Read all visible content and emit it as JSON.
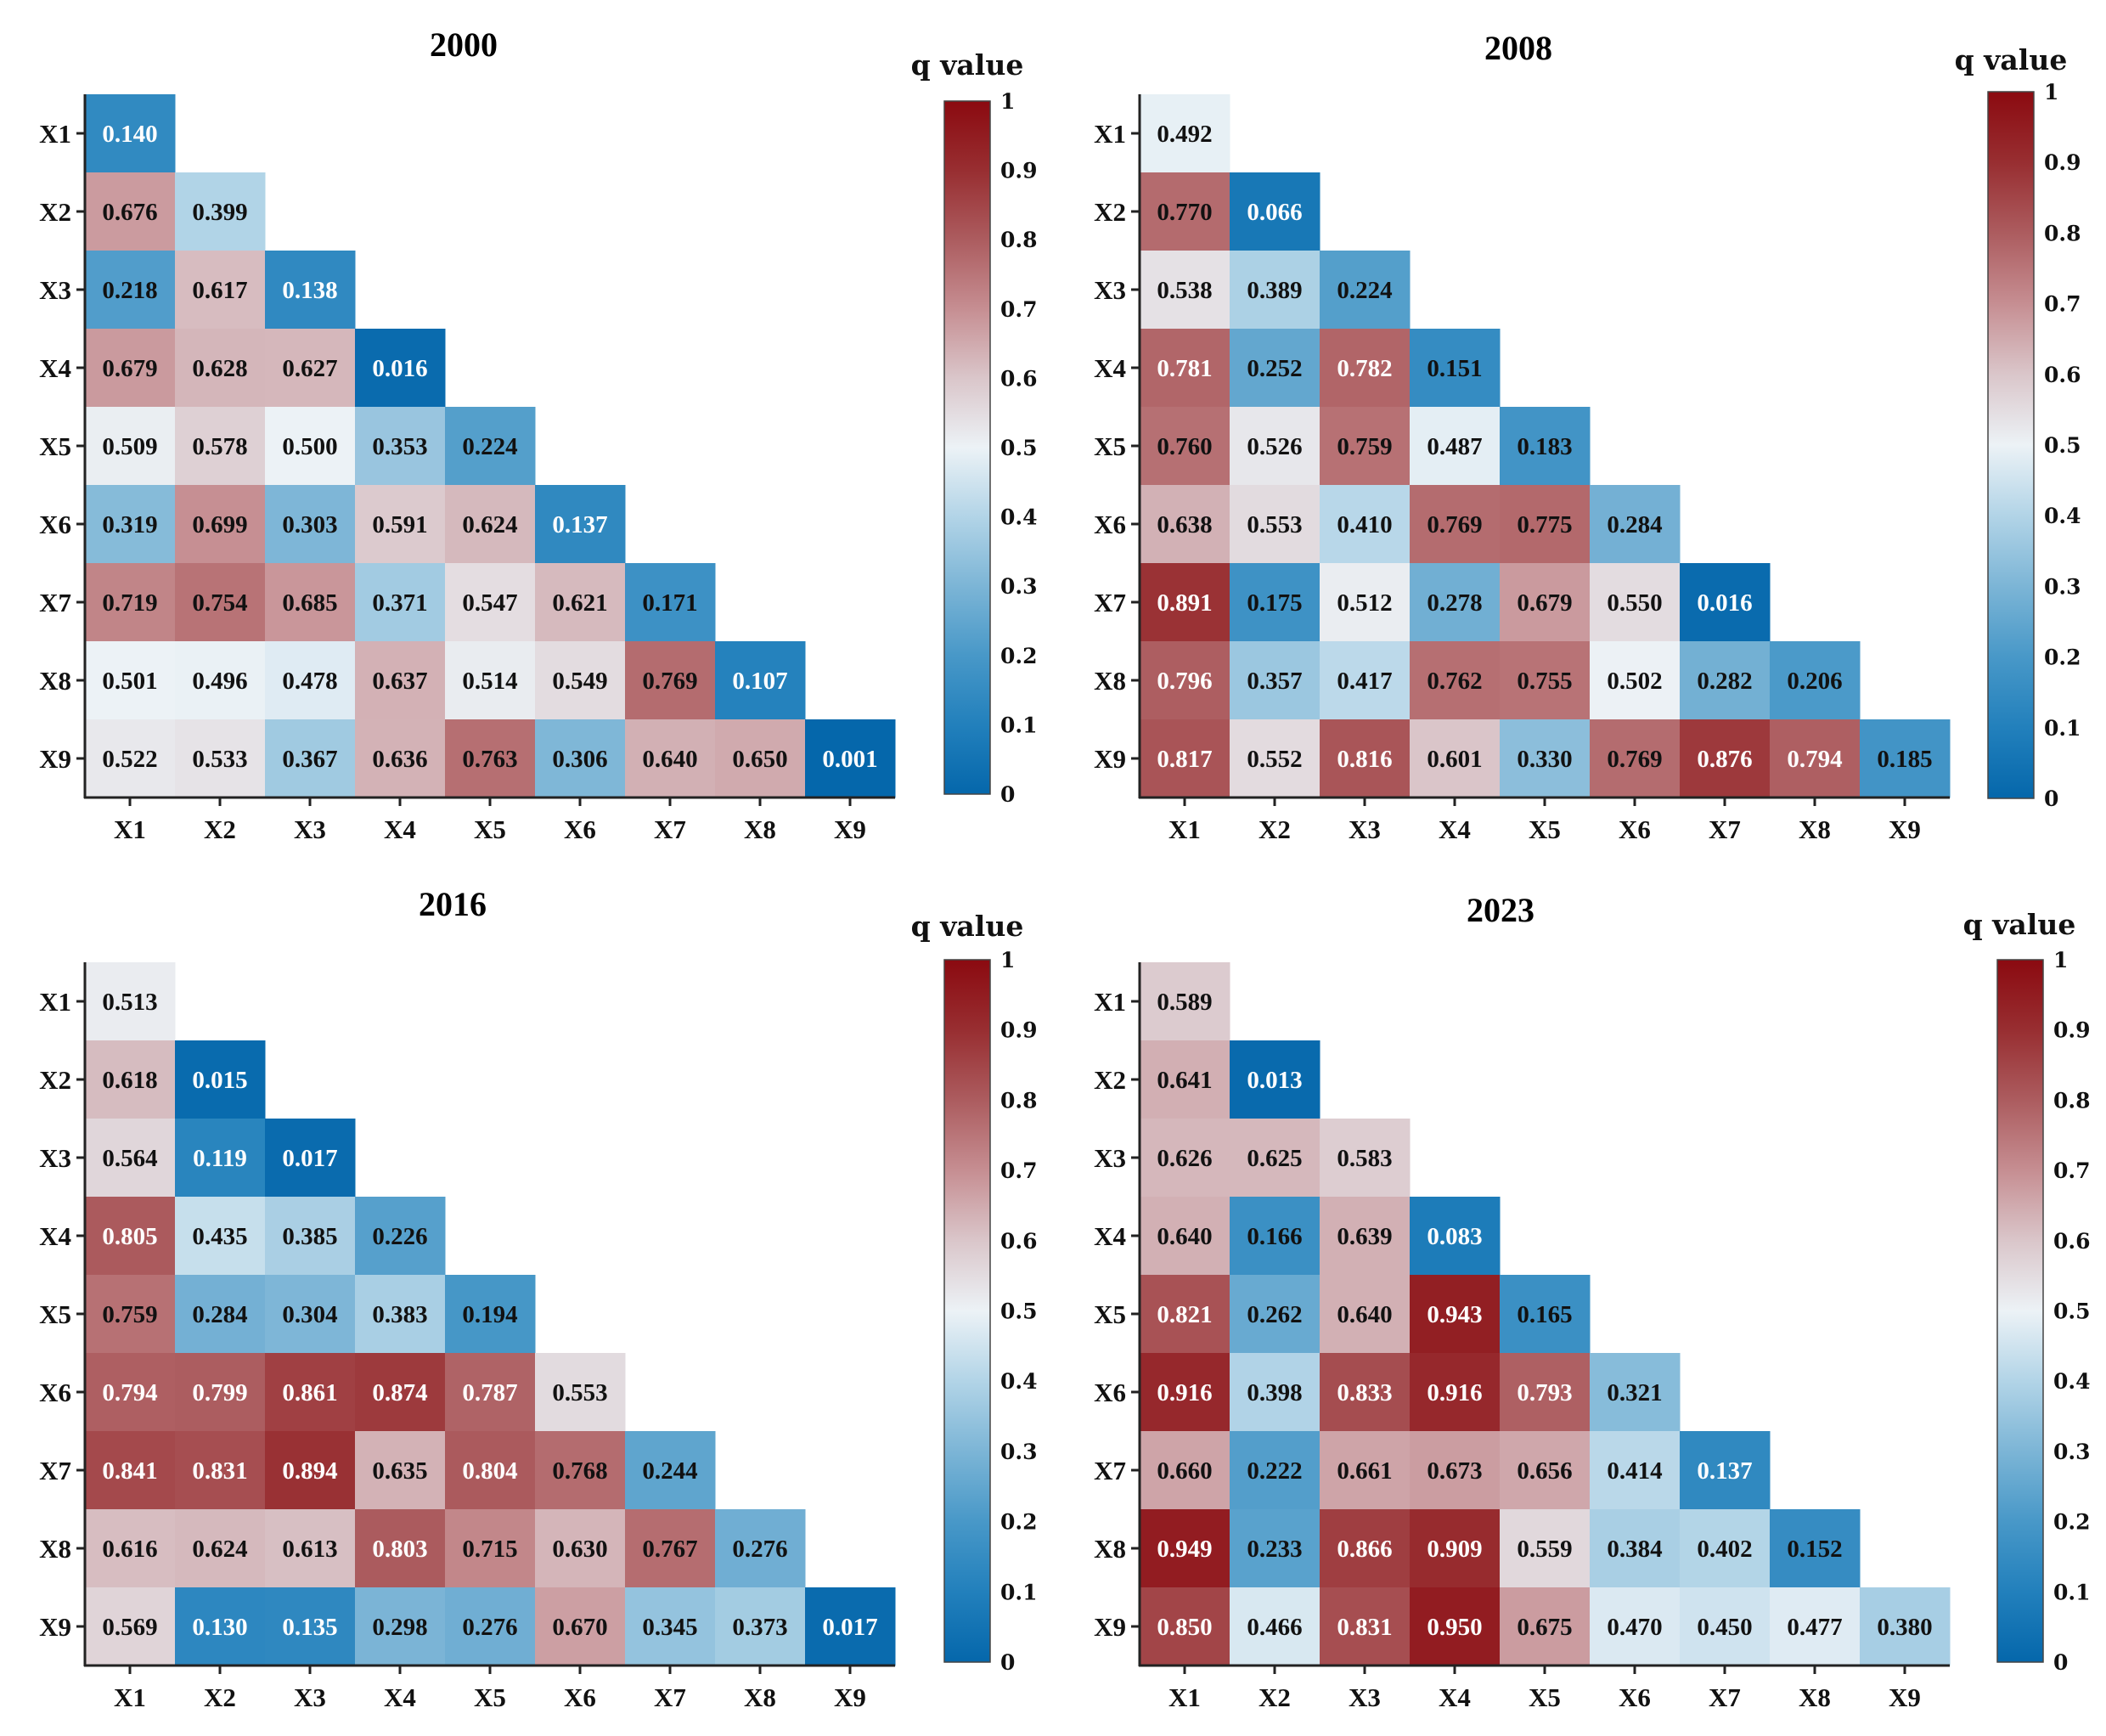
{
  "chart_data": [
    {
      "type": "heatmap",
      "title": "2000",
      "x_labels": [
        "X1",
        "X2",
        "X3",
        "X4",
        "X5",
        "X6",
        "X7",
        "X8",
        "X9"
      ],
      "y_labels": [
        "X1",
        "X2",
        "X3",
        "X4",
        "X5",
        "X6",
        "X7",
        "X8",
        "X9"
      ],
      "colorbar_label": "q value",
      "colorbar_ticks": [
        "0",
        "0.1",
        "0.2",
        "0.3",
        "0.4",
        "0.5",
        "0.6",
        "0.7",
        "0.8",
        "0.9",
        "1"
      ],
      "vmin": 0,
      "vmax": 1,
      "values": [
        [
          "0.140"
        ],
        [
          "0.676",
          "0.399"
        ],
        [
          "0.218",
          "0.617",
          "0.138"
        ],
        [
          "0.679",
          "0.628",
          "0.627",
          "0.016"
        ],
        [
          "0.509",
          "0.578",
          "0.500",
          "0.353",
          "0.224"
        ],
        [
          "0.319",
          "0.699",
          "0.303",
          "0.591",
          "0.624",
          "0.137"
        ],
        [
          "0.719",
          "0.754",
          "0.685",
          "0.371",
          "0.547",
          "0.621",
          "0.171"
        ],
        [
          "0.501",
          "0.496",
          "0.478",
          "0.637",
          "0.514",
          "0.549",
          "0.769",
          "0.107"
        ],
        [
          "0.522",
          "0.533",
          "0.367",
          "0.636",
          "0.763",
          "0.306",
          "0.640",
          "0.650",
          "0.001"
        ]
      ]
    },
    {
      "type": "heatmap",
      "title": "2008",
      "x_labels": [
        "X1",
        "X2",
        "X3",
        "X4",
        "X5",
        "X6",
        "X7",
        "X8",
        "X9"
      ],
      "y_labels": [
        "X1",
        "X2",
        "X3",
        "X4",
        "X5",
        "X6",
        "X7",
        "X8",
        "X9"
      ],
      "colorbar_label": "q value",
      "colorbar_ticks": [
        "0",
        "0.1",
        "0.2",
        "0.3",
        "0.4",
        "0.5",
        "0.6",
        "0.7",
        "0.8",
        "0.9",
        "1"
      ],
      "vmin": 0,
      "vmax": 1,
      "values": [
        [
          "0.492"
        ],
        [
          "0.770",
          "0.066"
        ],
        [
          "0.538",
          "0.389",
          "0.224"
        ],
        [
          "0.781",
          "0.252",
          "0.782",
          "0.151"
        ],
        [
          "0.760",
          "0.526",
          "0.759",
          "0.487",
          "0.183"
        ],
        [
          "0.638",
          "0.553",
          "0.410",
          "0.769",
          "0.775",
          "0.284"
        ],
        [
          "0.891",
          "0.175",
          "0.512",
          "0.278",
          "0.679",
          "0.550",
          "0.016"
        ],
        [
          "0.796",
          "0.357",
          "0.417",
          "0.762",
          "0.755",
          "0.502",
          "0.282",
          "0.206"
        ],
        [
          "0.817",
          "0.552",
          "0.816",
          "0.601",
          "0.330",
          "0.769",
          "0.876",
          "0.794",
          "0.185"
        ]
      ]
    },
    {
      "type": "heatmap",
      "title": "2016",
      "x_labels": [
        "X1",
        "X2",
        "X3",
        "X4",
        "X5",
        "X6",
        "X7",
        "X8",
        "X9"
      ],
      "y_labels": [
        "X1",
        "X2",
        "X3",
        "X4",
        "X5",
        "X6",
        "X7",
        "X8",
        "X9"
      ],
      "colorbar_label": "q value",
      "colorbar_ticks": [
        "0",
        "0.1",
        "0.2",
        "0.3",
        "0.4",
        "0.5",
        "0.6",
        "0.7",
        "0.8",
        "0.9",
        "1"
      ],
      "vmin": 0,
      "vmax": 1,
      "values": [
        [
          "0.513"
        ],
        [
          "0.618",
          "0.015"
        ],
        [
          "0.564",
          "0.119",
          "0.017"
        ],
        [
          "0.805",
          "0.435",
          "0.385",
          "0.226"
        ],
        [
          "0.759",
          "0.284",
          "0.304",
          "0.383",
          "0.194"
        ],
        [
          "0.794",
          "0.799",
          "0.861",
          "0.874",
          "0.787",
          "0.553"
        ],
        [
          "0.841",
          "0.831",
          "0.894",
          "0.635",
          "0.804",
          "0.768",
          "0.244"
        ],
        [
          "0.616",
          "0.624",
          "0.613",
          "0.803",
          "0.715",
          "0.630",
          "0.767",
          "0.276"
        ],
        [
          "0.569",
          "0.130",
          "0.135",
          "0.298",
          "0.276",
          "0.670",
          "0.345",
          "0.373",
          "0.017"
        ]
      ]
    },
    {
      "type": "heatmap",
      "title": "2023",
      "x_labels": [
        "X1",
        "X2",
        "X3",
        "X4",
        "X5",
        "X6",
        "X7",
        "X8",
        "X9"
      ],
      "y_labels": [
        "X1",
        "X2",
        "X3",
        "X4",
        "X5",
        "X6",
        "X7",
        "X8",
        "X9"
      ],
      "colorbar_label": "q value",
      "colorbar_ticks": [
        "0",
        "0.1",
        "0.2",
        "0.3",
        "0.4",
        "0.5",
        "0.6",
        "0.7",
        "0.8",
        "0.9",
        "1"
      ],
      "vmin": 0,
      "vmax": 1,
      "values": [
        [
          "0.589"
        ],
        [
          "0.641",
          "0.013"
        ],
        [
          "0.626",
          "0.625",
          "0.583"
        ],
        [
          "0.640",
          "0.166",
          "0.639",
          "0.083"
        ],
        [
          "0.821",
          "0.262",
          "0.640",
          "0.943",
          "0.165"
        ],
        [
          "0.916",
          "0.398",
          "0.833",
          "0.916",
          "0.793",
          "0.321"
        ],
        [
          "0.660",
          "0.222",
          "0.661",
          "0.673",
          "0.656",
          "0.414",
          "0.137"
        ],
        [
          "0.949",
          "0.233",
          "0.866",
          "0.909",
          "0.559",
          "0.384",
          "0.402",
          "0.152"
        ],
        [
          "0.850",
          "0.466",
          "0.831",
          "0.950",
          "0.675",
          "0.470",
          "0.450",
          "0.477",
          "0.380"
        ]
      ]
    }
  ],
  "colors": {
    "low": "#0567ab",
    "mid": "#edf2f5",
    "high": "#8b0a10",
    "text_dark": "#111111",
    "text_light": "#ffffff"
  }
}
